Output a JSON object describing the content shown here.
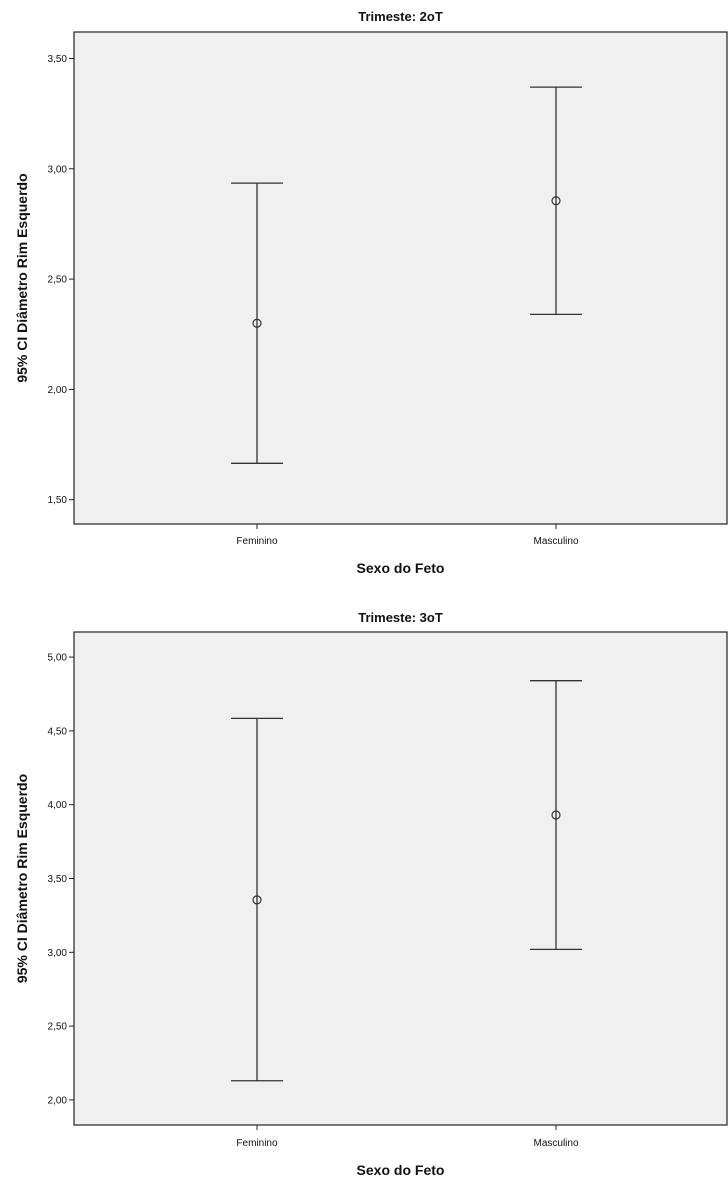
{
  "chart_data": [
    {
      "type": "errorbar",
      "title": "Trimeste: 2oT",
      "xlabel": "Sexo do Feto",
      "ylabel": "95% CI Diâmetro Rim Esquerdo",
      "categories": [
        "Feminino",
        "Masculino"
      ],
      "mean": [
        2.3,
        2.855
      ],
      "lower": [
        1.665,
        2.34
      ],
      "upper": [
        2.935,
        3.37
      ],
      "ylim": [
        1.39,
        3.62
      ],
      "yticks": [
        "1,50",
        "2,00",
        "2,50",
        "3,00",
        "3,50"
      ],
      "ytick_values": [
        1.5,
        2.0,
        2.5,
        3.0,
        3.5
      ],
      "grid": false
    },
    {
      "type": "errorbar",
      "title": "Trimeste: 3oT",
      "xlabel": "Sexo do Feto",
      "ylabel": "95% CI Diâmetro Rim Esquerdo",
      "categories": [
        "Feminino",
        "Masculino"
      ],
      "mean": [
        3.355,
        3.93
      ],
      "lower": [
        2.13,
        3.02
      ],
      "upper": [
        4.585,
        4.84
      ],
      "ylim": [
        1.83,
        5.17
      ],
      "yticks": [
        "2,00",
        "2,50",
        "3,00",
        "3,50",
        "4,00",
        "4,50",
        "5,00"
      ],
      "ytick_values": [
        2.0,
        2.5,
        3.0,
        3.5,
        4.0,
        4.5,
        5.0
      ],
      "grid": false
    }
  ]
}
